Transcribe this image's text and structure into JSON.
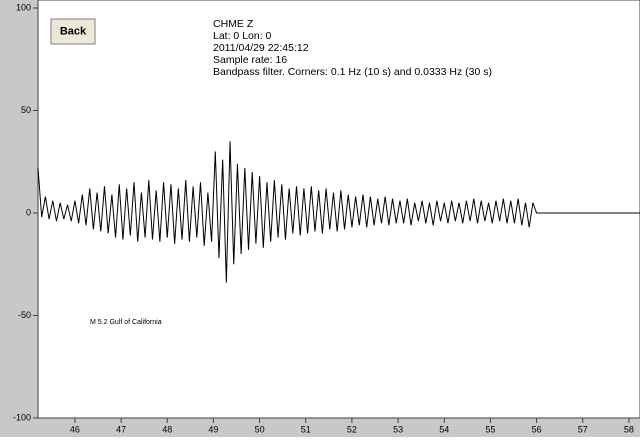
{
  "chart_data": {
    "type": "line",
    "button": "Back",
    "info": [
      "CHME  Z",
      "Lat: 0 Lon: 0",
      "2011/04/29 22:45:12",
      "Sample rate: 16",
      "Bandpass filter. Corners: 0.1 Hz (10 s) and 0.0333 Hz (30 s)"
    ],
    "annotation": "M 5.2  Gulf of California",
    "color": "#000000",
    "xlim": [
      45.2,
      58.24
    ],
    "ylim": [
      -100,
      100
    ],
    "xticks": [
      46,
      47,
      48,
      49,
      50,
      51,
      52,
      53,
      54,
      55,
      56,
      57,
      58
    ],
    "yticks": [
      100,
      50,
      0,
      -50,
      -100
    ],
    "x": [
      45.2,
      45.28,
      45.36,
      45.44,
      45.52,
      45.6,
      45.68,
      45.76,
      45.84,
      45.92,
      46,
      46.08,
      46.16,
      46.24,
      46.32,
      46.4,
      46.48,
      46.56,
      46.64,
      46.72,
      46.8,
      46.88,
      46.96,
      47.04,
      47.12,
      47.2,
      47.28,
      47.36,
      47.44,
      47.52,
      47.6,
      47.68,
      47.76,
      47.84,
      47.92,
      48,
      48.08,
      48.16,
      48.24,
      48.32,
      48.4,
      48.48,
      48.56,
      48.64,
      48.72,
      48.8,
      48.88,
      48.96,
      49.04,
      49.12,
      49.2,
      49.28,
      49.36,
      49.44,
      49.52,
      49.6,
      49.68,
      49.76,
      49.84,
      49.92,
      50,
      50.08,
      50.16,
      50.24,
      50.32,
      50.4,
      50.48,
      50.56,
      50.64,
      50.72,
      50.8,
      50.88,
      50.96,
      51.04,
      51.12,
      51.2,
      51.28,
      51.36,
      51.44,
      51.52,
      51.6,
      51.68,
      51.76,
      51.84,
      51.92,
      52,
      52.08,
      52.16,
      52.24,
      52.32,
      52.4,
      52.48,
      52.56,
      52.64,
      52.72,
      52.8,
      52.88,
      52.96,
      53.04,
      53.12,
      53.2,
      53.28,
      53.36,
      53.44,
      53.52,
      53.6,
      53.68,
      53.76,
      53.84,
      53.92,
      54,
      54.08,
      54.16,
      54.24,
      54.32,
      54.4,
      54.48,
      54.56,
      54.64,
      54.72,
      54.8,
      54.88,
      54.96,
      55.04,
      55.12,
      55.2,
      55.28,
      55.36,
      55.44,
      55.52,
      55.6,
      55.68,
      55.76,
      55.84,
      55.92,
      56,
      58.24
    ],
    "values": [
      22,
      -2,
      8,
      -3,
      6,
      -4,
      5,
      -3,
      4,
      -4,
      6,
      -5,
      9,
      -6,
      12,
      -8,
      10,
      -9,
      13,
      -10,
      9,
      -12,
      14,
      -13,
      12,
      -11,
      15,
      -14,
      10,
      -12,
      16,
      -13,
      11,
      -14,
      15,
      -12,
      14,
      -15,
      12,
      -13,
      16,
      -14,
      13,
      -12,
      15,
      -16,
      10,
      -14,
      30,
      -22,
      26,
      -34,
      35,
      -25,
      24,
      -20,
      22,
      -18,
      20,
      -15,
      18,
      -17,
      15,
      -14,
      16,
      -12,
      14,
      -13,
      12,
      -10,
      13,
      -11,
      12,
      -10,
      13,
      -9,
      11,
      -10,
      12,
      -8,
      10,
      -9,
      11,
      -8,
      9,
      -7,
      8,
      -6,
      9,
      -7,
      8,
      -6,
      7,
      -5,
      8,
      -6,
      7,
      -5,
      6,
      -5,
      7,
      -6,
      5,
      -4,
      6,
      -5,
      5,
      -6,
      6,
      -4,
      5,
      -5,
      6,
      -4,
      5,
      -5,
      6,
      -4,
      7,
      -5,
      6,
      -4,
      5,
      -5,
      6,
      -4,
      7,
      -5,
      6,
      -5,
      7,
      -6,
      5,
      -7,
      5,
      0,
      0
    ]
  }
}
